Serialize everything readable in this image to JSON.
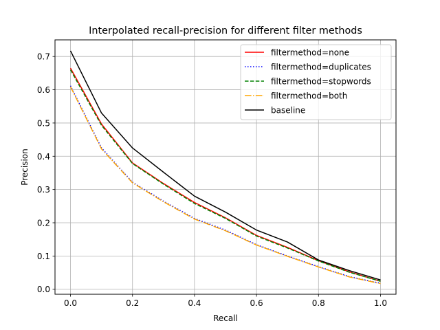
{
  "chart_data": {
    "type": "line",
    "title": "Interpolated recall-precision for different filter methods",
    "xlabel": "Recall",
    "ylabel": "Precision",
    "xlim": [
      -0.05,
      1.05
    ],
    "ylim": [
      -0.015,
      0.75
    ],
    "xticks": [
      0.0,
      0.2,
      0.4,
      0.6,
      0.8,
      1.0
    ],
    "xtick_labels": [
      "0.0",
      "0.2",
      "0.4",
      "0.6",
      "0.8",
      "1.0"
    ],
    "yticks": [
      0.0,
      0.1,
      0.2,
      0.3,
      0.4,
      0.5,
      0.6,
      0.7
    ],
    "ytick_labels": [
      "0.0",
      "0.1",
      "0.2",
      "0.3",
      "0.4",
      "0.5",
      "0.6",
      "0.7"
    ],
    "grid": true,
    "legend_position": "top-right",
    "x": [
      0.0,
      0.1,
      0.2,
      0.3,
      0.4,
      0.5,
      0.6,
      0.7,
      0.8,
      0.9,
      1.0
    ],
    "series": [
      {
        "name": "filtermethod=none",
        "color": "#ff0000",
        "style": "solid",
        "values": [
          0.665,
          0.497,
          0.38,
          0.318,
          0.261,
          0.215,
          0.162,
          0.126,
          0.086,
          0.052,
          0.024
        ]
      },
      {
        "name": "filtermethod=duplicates",
        "color": "#0000ff",
        "style": "dotted",
        "values": [
          0.612,
          0.425,
          0.322,
          0.265,
          0.213,
          0.178,
          0.134,
          0.1,
          0.068,
          0.038,
          0.018
        ]
      },
      {
        "name": "filtermethod=stopwords",
        "color": "#008000",
        "style": "dashed",
        "values": [
          0.66,
          0.493,
          0.378,
          0.316,
          0.258,
          0.213,
          0.16,
          0.124,
          0.085,
          0.051,
          0.024
        ]
      },
      {
        "name": "filtermethod=both",
        "color": "#ffa500",
        "style": "dashdot",
        "values": [
          0.609,
          0.422,
          0.32,
          0.263,
          0.211,
          0.176,
          0.133,
          0.099,
          0.067,
          0.037,
          0.017
        ]
      },
      {
        "name": "baseline",
        "color": "#000000",
        "style": "solid",
        "values": [
          0.717,
          0.53,
          0.425,
          0.352,
          0.28,
          0.232,
          0.178,
          0.142,
          0.088,
          0.056,
          0.028
        ]
      }
    ]
  }
}
